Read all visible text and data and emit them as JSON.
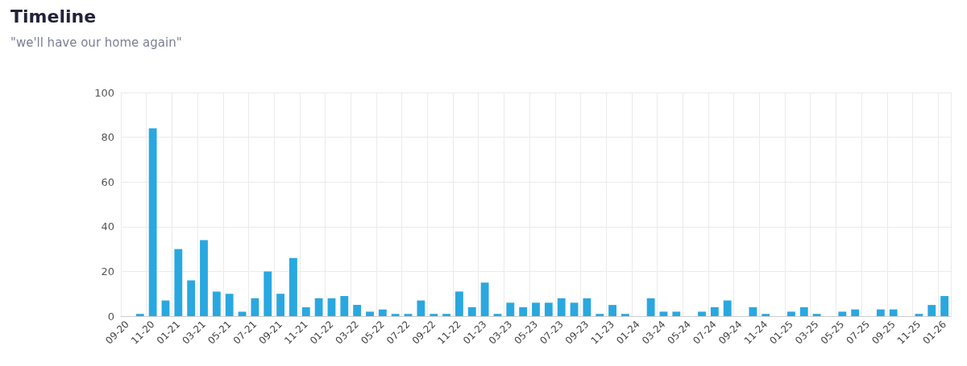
{
  "chart_data": {
    "type": "bar",
    "title": "Timeline",
    "subtitle": "\"we'll have our home again\"",
    "categories": [
      "09-20",
      null,
      "11-20",
      null,
      "01-21",
      null,
      "03-21",
      null,
      "05-21",
      null,
      "07-21",
      null,
      "09-21",
      null,
      "11-21",
      null,
      "01-22",
      null,
      "03-22",
      null,
      "05-22",
      null,
      "07-22",
      null,
      "09-22",
      null,
      "11-22",
      null,
      "01-23",
      null,
      "03-23",
      null,
      "05-23",
      null,
      "07-23",
      null,
      "09-23",
      null,
      "11-23",
      null,
      "01-24",
      null,
      "03-24",
      null,
      "05-24",
      null,
      "07-24",
      null,
      "09-24",
      null,
      "11-24",
      null,
      "01-25",
      null,
      "03-25",
      null,
      "05-25",
      null,
      "07-25",
      null,
      "09-25",
      null,
      "11-25",
      null,
      "01-26"
    ],
    "series": [
      {
        "color": "#29a8e0",
        "values": [
          0,
          1,
          84,
          7,
          30,
          16,
          34,
          11,
          10,
          2,
          8,
          20,
          10,
          26,
          4,
          8,
          8,
          9,
          5,
          2,
          3,
          1,
          1,
          7,
          1,
          1,
          11,
          4,
          15,
          1,
          6,
          4,
          6,
          6,
          8,
          6,
          8,
          1,
          5,
          1,
          0,
          8,
          2,
          2,
          0,
          2,
          4,
          7,
          0,
          4,
          1,
          0,
          2,
          4,
          1,
          0,
          2,
          3,
          0,
          3,
          3,
          0,
          1,
          5,
          9
        ]
      }
    ],
    "ylim": [
      0,
      100
    ],
    "yticks": [
      0,
      20,
      40,
      60,
      80,
      100
    ],
    "grid": true
  }
}
